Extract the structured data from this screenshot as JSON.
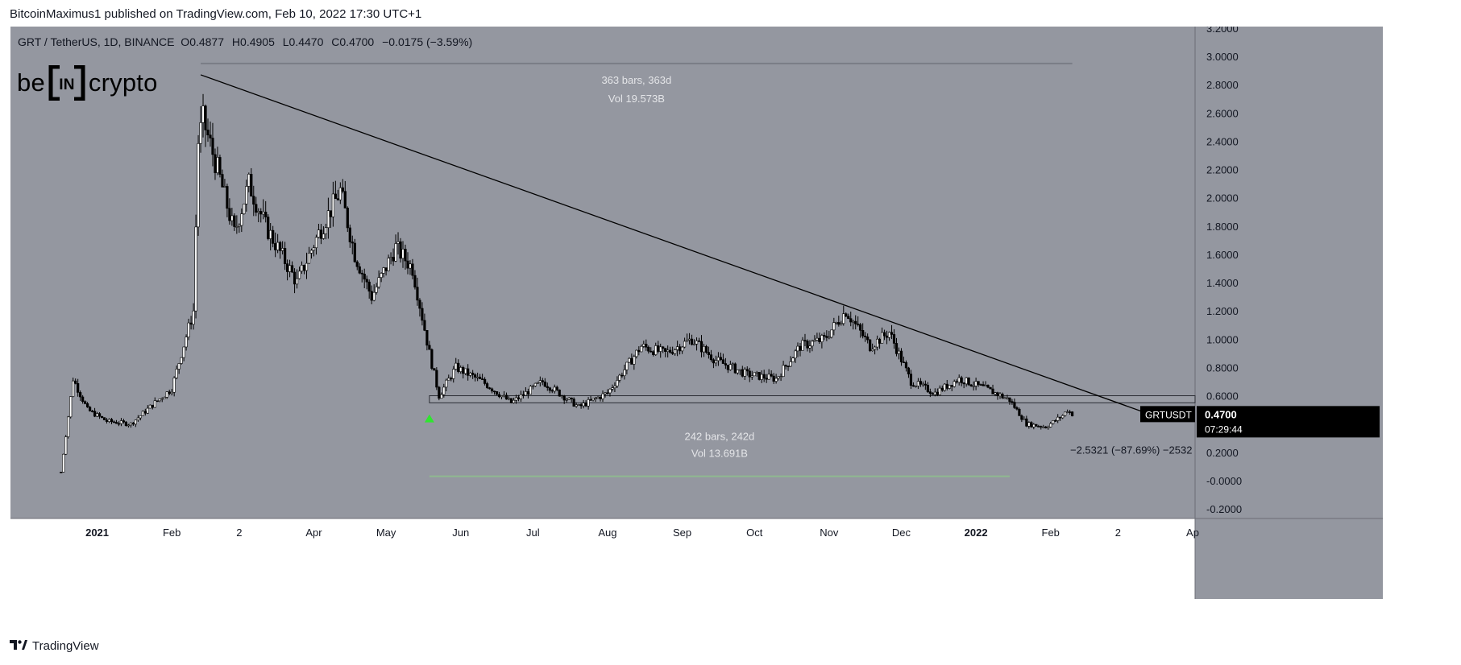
{
  "header": {
    "publisher": "BitcoinMaximus1 published on TradingView.com, Feb 10, 2022 17:30 UTC+1"
  },
  "ohlc_bar": {
    "symbol": "GRT / TetherUS, 1D, BINANCE",
    "o_label": "O",
    "o": "0.4877",
    "h_label": "H",
    "h": "0.4905",
    "l_label": "L",
    "l": "0.4470",
    "c_label": "C",
    "c": "0.4700",
    "change": "−0.0175 (−3.59%)"
  },
  "logo": {
    "left": "be",
    "middle": "IN",
    "right": "crypto"
  },
  "unit": "USDT",
  "footer": {
    "brand": "TradingView",
    "icon": "tradingview-logo-icon"
  },
  "colors": {
    "chart_bg": "#9497a0",
    "axis_bg": "#ffffff",
    "candle": "#000000",
    "range_line_top": "#7a7d86",
    "range_line_bottom": "#8fb98f",
    "marker_green": "#2fe52f",
    "label_bg": "#000000"
  },
  "chart_data": {
    "type": "candlestick",
    "series": [
      {
        "name": "GRTUSDT",
        "approx_close": [
          {
            "x": "2020-12-17",
            "y": 0.06
          },
          {
            "x": "2020-12-19",
            "y": 0.32
          },
          {
            "x": "2020-12-22",
            "y": 0.72
          },
          {
            "x": "2020-12-28",
            "y": 0.5
          },
          {
            "x": "2021-01-05",
            "y": 0.42
          },
          {
            "x": "2021-01-15",
            "y": 0.4
          },
          {
            "x": "2021-01-25",
            "y": 0.55
          },
          {
            "x": "2021-02-01",
            "y": 0.65
          },
          {
            "x": "2021-02-05",
            "y": 0.9
          },
          {
            "x": "2021-02-10",
            "y": 1.2
          },
          {
            "x": "2021-02-12",
            "y": 2.4
          },
          {
            "x": "2021-02-14",
            "y": 2.55
          },
          {
            "x": "2021-02-20",
            "y": 2.2
          },
          {
            "x": "2021-02-27",
            "y": 1.75
          },
          {
            "x": "2021-03-05",
            "y": 2.1
          },
          {
            "x": "2021-03-12",
            "y": 1.8
          },
          {
            "x": "2021-03-25",
            "y": 1.4
          },
          {
            "x": "2021-04-03",
            "y": 1.75
          },
          {
            "x": "2021-04-12",
            "y": 2.05
          },
          {
            "x": "2021-04-18",
            "y": 1.6
          },
          {
            "x": "2021-04-25",
            "y": 1.3
          },
          {
            "x": "2021-05-05",
            "y": 1.65
          },
          {
            "x": "2021-05-12",
            "y": 1.5
          },
          {
            "x": "2021-05-19",
            "y": 0.9
          },
          {
            "x": "2021-05-23",
            "y": 0.6
          },
          {
            "x": "2021-05-30",
            "y": 0.8
          },
          {
            "x": "2021-06-10",
            "y": 0.7
          },
          {
            "x": "2021-06-22",
            "y": 0.55
          },
          {
            "x": "2021-07-05",
            "y": 0.7
          },
          {
            "x": "2021-07-20",
            "y": 0.52
          },
          {
            "x": "2021-08-01",
            "y": 0.62
          },
          {
            "x": "2021-08-15",
            "y": 0.95
          },
          {
            "x": "2021-08-25",
            "y": 0.9
          },
          {
            "x": "2021-09-05",
            "y": 1.0
          },
          {
            "x": "2021-09-15",
            "y": 0.85
          },
          {
            "x": "2021-09-28",
            "y": 0.75
          },
          {
            "x": "2021-10-10",
            "y": 0.72
          },
          {
            "x": "2021-10-20",
            "y": 0.95
          },
          {
            "x": "2021-10-30",
            "y": 1.0
          },
          {
            "x": "2021-11-08",
            "y": 1.2
          },
          {
            "x": "2021-11-18",
            "y": 0.95
          },
          {
            "x": "2021-11-26",
            "y": 1.05
          },
          {
            "x": "2021-12-05",
            "y": 0.7
          },
          {
            "x": "2021-12-15",
            "y": 0.62
          },
          {
            "x": "2021-12-25",
            "y": 0.72
          },
          {
            "x": "2022-01-05",
            "y": 0.65
          },
          {
            "x": "2022-01-15",
            "y": 0.57
          },
          {
            "x": "2022-01-22",
            "y": 0.4
          },
          {
            "x": "2022-01-30",
            "y": 0.38
          },
          {
            "x": "2022-02-06",
            "y": 0.46
          },
          {
            "x": "2022-02-08",
            "y": 0.5
          },
          {
            "x": "2022-02-10",
            "y": 0.47
          }
        ]
      }
    ],
    "trendline": {
      "from": {
        "x": "2021-02-13",
        "y": 2.87
      },
      "to": {
        "x": "2022-03-14",
        "y": 0.47
      }
    },
    "support_zone": {
      "from": "2021-05-19",
      "to": "2022-04-01",
      "y_low": 0.55,
      "y_high": 0.6
    },
    "range_top": {
      "from": "2021-02-13",
      "to": "2022-02-10",
      "y": 2.95,
      "label_bars": "363 bars, 363d",
      "label_vol": "Vol 19.573B"
    },
    "range_bottom": {
      "from": "2021-05-19",
      "to": "2022-01-15",
      "y": 0.03,
      "label_bars": "242 bars, 242d",
      "label_vol": "Vol 13.691B"
    },
    "measure_label": "−2.5321 (−87.69%) −2532",
    "marker": {
      "x": "2021-05-19",
      "y": 0.44,
      "shape": "triangle-up"
    },
    "price_label": {
      "symbol": "GRTUSDT",
      "value": "0.4700",
      "countdown": "07:29:44"
    },
    "y_axis": {
      "min": -0.2,
      "max": 3.2,
      "ticks": [
        "3.2000",
        "3.0000",
        "2.8000",
        "2.6000",
        "2.4000",
        "2.2000",
        "2.0000",
        "1.8000",
        "1.6000",
        "1.4000",
        "1.2000",
        "1.0000",
        "0.8000",
        "0.6000",
        "0.4000",
        "0.2000",
        "-0.0000",
        "-0.2000"
      ]
    },
    "x_axis": {
      "ticks": [
        "2021",
        "Feb",
        "2",
        "Apr",
        "May",
        "Jun",
        "Jul",
        "Aug",
        "Sep",
        "Oct",
        "Nov",
        "Dec",
        "2022",
        "Feb",
        "2",
        "Ap"
      ]
    }
  }
}
